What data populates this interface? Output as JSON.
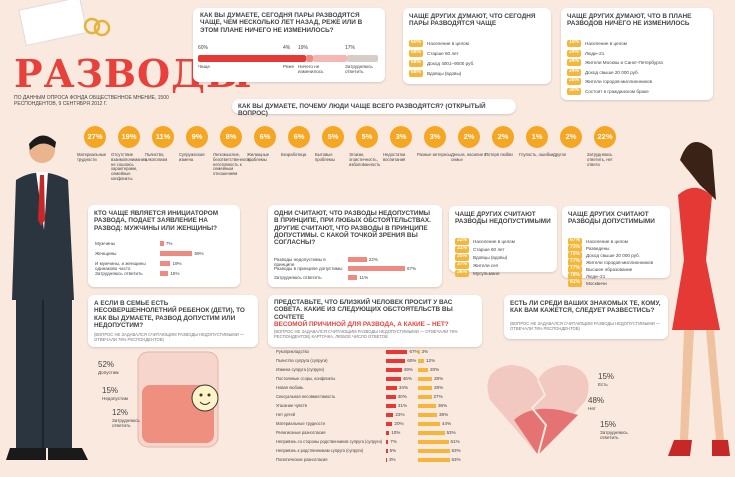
{
  "header": {
    "title": "РАЗВОДЫ",
    "subtitle": "ПО ДАННЫМ ОПРОСА ФОНДА ОБЩЕСТВЕННОЕ МНЕНИЕ, 1500 РЕСПОНДЕНТОВ, 9 СЕНТЯБРЯ 2012 Г."
  },
  "trend": {
    "question": "КАК ВЫ ДУМАЕТЕ, СЕГОДНЯ ПАРЫ РАЗВОДЯТСЯ ЧАЩЕ, ЧЕМ НЕСКОЛЬКО ЛЕТ НАЗАД, РЕЖЕ ИЛИ В ЭТОМ ПЛАНЕ НИЧЕГО НЕ ИЗМЕНИЛОСЬ?",
    "items": [
      {
        "value": 60,
        "label": "60%",
        "name": "Чаще"
      },
      {
        "value": 4,
        "label": "4%",
        "name": "Реже"
      },
      {
        "value": 19,
        "label": "19%",
        "name": "Ничего не изменилось"
      },
      {
        "value": 17,
        "label": "17%",
        "name": "Затрудняюсь ответить"
      }
    ]
  },
  "trend_more": {
    "title": "ЧАЩЕ ДРУГИХ ДУМАЮТ, ЧТО СЕГОДНЯ ПАРЫ РАЗВОДЯТСЯ ЧАЩЕ",
    "items": [
      {
        "label": "60%",
        "name": "Население в целом"
      },
      {
        "label": "68%",
        "name": "Старше 60 лет"
      },
      {
        "label": "68%",
        "name": "Доход 4001–9000 руб."
      },
      {
        "label": "68%",
        "name": "Вдовцы (вдовы)"
      }
    ]
  },
  "trend_same": {
    "title": "ЧАЩЕ ДРУГИХ ДУМАЮТ, ЧТО В ПЛАНЕ РАЗВОДОВ НИЧЕГО НЕ ИЗМЕНИЛОСЬ",
    "items": [
      {
        "label": "19%",
        "name": "Население в целом"
      },
      {
        "label": "24%",
        "name": "Люди–21"
      },
      {
        "label": "24%",
        "name": "Жители Москвы и Санкт-Петербурга"
      },
      {
        "label": "24%",
        "name": "Доход свыше 20 000 руб."
      },
      {
        "label": "26%",
        "name": "Жители городов-миллионников"
      },
      {
        "label": "30%",
        "name": "Состоят в гражданском браке"
      }
    ]
  },
  "reasons": {
    "question": "КАК ВЫ ДУМАЕТЕ, ПОЧЕМУ ЛЮДИ ЧАЩЕ ВСЕГО РАЗВОДЯТСЯ? (ОТКРЫТЫЙ ВОПРОС)",
    "items": [
      {
        "label": "27%",
        "name": "Материальные трудности"
      },
      {
        "label": "19%",
        "name": "Отсутствие взаимопонимания, не сошлись характерами, семейные конфликты"
      },
      {
        "label": "11%",
        "name": "Пьянство, алкоголизм"
      },
      {
        "label": "9%",
        "name": "Супружеская измена"
      },
      {
        "label": "8%",
        "name": "Легкомыслие, безответственность, неготовность к семейным отношениям"
      },
      {
        "label": "6%",
        "name": "Жилищные проблемы"
      },
      {
        "label": "6%",
        "name": "Безработица"
      },
      {
        "label": "5%",
        "name": "Бытовые проблемы"
      },
      {
        "label": "5%",
        "name": "Эгоизм, эгоистичность, избалованность"
      },
      {
        "label": "3%",
        "name": "Недостатки воспитания"
      },
      {
        "label": "3%",
        "name": "Разные интересы"
      },
      {
        "label": "2%",
        "name": "Деньги, насилие в семье"
      },
      {
        "label": "2%",
        "name": "Потеря любви"
      },
      {
        "label": "1%",
        "name": "Глупость, ошибки"
      },
      {
        "label": "2%",
        "name": "Другое"
      },
      {
        "label": "22%",
        "name": "Затрудняюсь ответить, нет ответа"
      }
    ]
  },
  "initiator": {
    "question": "КТО ЧАЩЕ ЯВЛЯЕТСЯ ИНИЦИАТОРОМ РАЗВОДА, ПОДАЕТ ЗАЯВЛЕНИЕ НА РАЗВОД: МУЖЧИНЫ ИЛИ ЖЕНЩИНЫ?",
    "items": [
      {
        "value": 7,
        "label": "7%",
        "name": "Мужчины"
      },
      {
        "value": 59,
        "label": "59%",
        "name": "Женщины"
      },
      {
        "value": 19,
        "label": "19%",
        "name": "И мужчины, и женщины одинаково часто"
      },
      {
        "value": 15,
        "label": "15%",
        "name": "Затрудняюсь ответить"
      }
    ]
  },
  "acceptable": {
    "question": "ОДНИ СЧИТАЮТ, ЧТО РАЗВОДЫ НЕДОПУСТИМЫ В ПРИНЦИПЕ, ПРИ ЛЮБЫХ ОБСТОЯТЕЛЬСТВАХ. ДРУГИЕ СЧИТАЮТ, ЧТО РАЗВОДЫ В ПРИНЦИПЕ ДОПУСТИМЫ. С КАКОЙ ТОЧКОЙ ЗРЕНИЯ ВЫ СОГЛАСНЫ?",
    "items": [
      {
        "value": 22,
        "label": "22%",
        "name": "Разводы недопустимы в принципе"
      },
      {
        "value": 67,
        "label": "67%",
        "name": "Разводы в принципе допустимы"
      },
      {
        "value": 11,
        "label": "11%",
        "name": "Затрудняюсь ответить"
      }
    ]
  },
  "against_groups": {
    "title": "ЧАЩЕ ДРУГИХ СЧИТАЮТ РАЗВОДЫ НЕДОПУСТИМЫМИ",
    "items": [
      {
        "label": "22%",
        "name": "Население в целом"
      },
      {
        "label": "31%",
        "name": "Старше 60 лет"
      },
      {
        "label": "35%",
        "name": "Вдовцы (вдовы)"
      },
      {
        "label": "37%",
        "name": "Жители сел"
      },
      {
        "label": "36%",
        "name": "Мусульмане"
      }
    ]
  },
  "for_groups": {
    "title": "ЧАЩЕ ДРУГИХ СЧИТАЮТ РАЗВОДЫ ДОПУСТИМЫМИ",
    "items": [
      {
        "label": "67%",
        "name": "Население в целом"
      },
      {
        "label": "73%",
        "name": "Разведены"
      },
      {
        "label": "75%",
        "name": "Доход свыше 20 000 руб."
      },
      {
        "label": "77%",
        "name": "Жители городов-миллионников"
      },
      {
        "label": "77%",
        "name": "Высшее образование"
      },
      {
        "label": "78%",
        "name": "Люди–21"
      },
      {
        "label": "81%",
        "name": "Москвичи"
      }
    ]
  },
  "children": {
    "question": "А ЕСЛИ В СЕМЬЕ ЕСТЬ НЕСОВЕРШЕННОЛЕТНИЙ РЕБЕНОК (ДЕТИ), ТО КАК ВЫ ДУМАЕТЕ, РАЗВОД ДОПУСТИМ ИЛИ НЕДОПУСТИМ?",
    "note": "(ВОПРОС НЕ ЗАДАВАЛСЯ СЧИТАЮЩИМ РАЗВОДЫ НЕДОПУСТИМЫМИ — ОТВЕЧАЛИ 78% РЕСПОНДЕНТОВ)",
    "items": [
      {
        "label": "52%",
        "name": "Допустим"
      },
      {
        "label": "15%",
        "name": "Недопустим"
      },
      {
        "label": "12%",
        "name": "Затрудняюсь ответить"
      }
    ]
  },
  "advice": {
    "question": "ПРЕДСТАВЬТЕ, ЧТО БЛИЗКИЙ ЧЕЛОВЕК ПРОСИТ У ВАС СОВЕТА. КАКИЕ ИЗ СЛЕДУЮЩИХ ОБСТОЯТЕЛЬСТВ ВЫ СОЧТЕТЕ",
    "highlight": "ВЕСОМОЙ ПРИЧИНОЙ ДЛЯ РАЗВОДА, А КАКИЕ – НЕТ?",
    "note": "(ВОПРОС НЕ ЗАДАВАЛСЯ СЧИТАЮЩИМ РАЗВОДЫ НЕДОПУСТИМЫМИ — ОТВЕЧАЛИ 78% РЕСПОНДЕНТОВ) КАРТОЧКА, ЛЮБОЕ ЧИСЛО ОТВЕТОВ",
    "rows": [
      {
        "name": "Рукоприкладство",
        "yes": {
          "value": 67,
          "label": "67%"
        },
        "no": {
          "value": 3,
          "label": "3%"
        }
      },
      {
        "name": "Пьянство супруга (супруги)",
        "yes": {
          "value": 60,
          "label": "60%"
        },
        "no": {
          "value": 12,
          "label": "12%"
        }
      },
      {
        "name": "Измена супруга (супруги)",
        "yes": {
          "value": 49,
          "label": "49%"
        },
        "no": {
          "value": 20,
          "label": "20%"
        }
      },
      {
        "name": "Постоянные ссоры, конфликты",
        "yes": {
          "value": 46,
          "label": "46%"
        },
        "no": {
          "value": 28,
          "label": "28%"
        }
      },
      {
        "name": "Новая любовь",
        "yes": {
          "value": 34,
          "label": "34%"
        },
        "no": {
          "value": 28,
          "label": "28%"
        }
      },
      {
        "name": "Сексуальная несовместимость",
        "yes": {
          "value": 30,
          "label": "30%"
        },
        "no": {
          "value": 27,
          "label": "27%"
        }
      },
      {
        "name": "Угасание чувств",
        "yes": {
          "value": 31,
          "label": "31%"
        },
        "no": {
          "value": 36,
          "label": "36%"
        }
      },
      {
        "name": "Нет детей",
        "yes": {
          "value": 23,
          "label": "23%"
        },
        "no": {
          "value": 38,
          "label": "38%"
        }
      },
      {
        "name": "Материальные трудности",
        "yes": {
          "value": 20,
          "label": "20%"
        },
        "no": {
          "value": 44,
          "label": "44%"
        }
      },
      {
        "name": "Религиозные разногласия",
        "yes": {
          "value": 10,
          "label": "10%"
        },
        "no": {
          "value": 53,
          "label": "53%"
        }
      },
      {
        "name": "Неприязнь со стороны родственников супруга (супруги)",
        "yes": {
          "value": 7,
          "label": "7%"
        },
        "no": {
          "value": 61,
          "label": "61%"
        }
      },
      {
        "name": "Неприязнь к родственникам супруга (супруги)",
        "yes": {
          "value": 5,
          "label": "5%"
        },
        "no": {
          "value": 63,
          "label": "63%"
        }
      },
      {
        "name": "Политические разногласия",
        "yes": {
          "value": 3,
          "label": "3%"
        },
        "no": {
          "value": 63,
          "label": "63%"
        }
      }
    ]
  },
  "acquaintances": {
    "question": "ЕСТЬ ЛИ СРЕДИ ВАШИХ ЗНАКОМЫХ ТЕ, КОМУ, КАК ВАМ КАЖЕТСЯ, СЛЕДУЕТ РАЗВЕСТИСЬ?",
    "note": "(ВОПРОС НЕ ЗАДАВАЛСЯ СЧИТАЮЩИМ РАЗВОДЫ НЕДОПУСТИМЫМИ — ОТВЕЧАЛИ 78% РЕСПОНДЕНТОВ)",
    "items": [
      {
        "label": "15%",
        "name": "Есть"
      },
      {
        "label": "48%",
        "name": "Нет"
      },
      {
        "label": "15%",
        "name": "Затрудняюсь ответить"
      }
    ]
  }
}
